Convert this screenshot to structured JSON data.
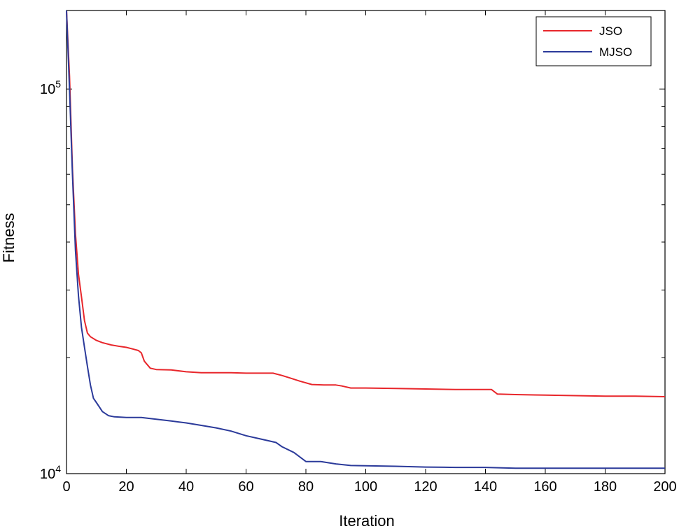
{
  "chart_data": {
    "type": "line",
    "xlabel": "Iteration",
    "ylabel": "Fitness",
    "xlim": [
      0,
      200
    ],
    "ylim": [
      10000,
      160000
    ],
    "yscale": "log",
    "grid": false,
    "legend": "top-right",
    "x_ticks": [
      0,
      20,
      40,
      60,
      80,
      100,
      120,
      140,
      160,
      180,
      200
    ],
    "y_major_ticks": [
      {
        "value": 10000,
        "base": "10",
        "exp": "4"
      },
      {
        "value": 100000,
        "base": "10",
        "exp": "5"
      }
    ],
    "y_minor_ticks": [
      20000,
      30000,
      40000,
      50000,
      60000,
      70000,
      80000,
      90000
    ],
    "colors": {
      "JSO": "#e8262b",
      "MJSO": "#2b3a9a"
    },
    "series": [
      {
        "name": "JSO",
        "color": "#e8262b",
        "points": [
          [
            0,
            160000
          ],
          [
            1,
            108000
          ],
          [
            2,
            62000
          ],
          [
            3,
            42000
          ],
          [
            4,
            33000
          ],
          [
            5,
            28800
          ],
          [
            6,
            25000
          ],
          [
            7,
            23200
          ],
          [
            8,
            22700
          ],
          [
            10,
            22200
          ],
          [
            12,
            21900
          ],
          [
            15,
            21600
          ],
          [
            18,
            21400
          ],
          [
            20,
            21300
          ],
          [
            22,
            21100
          ],
          [
            24,
            20900
          ],
          [
            25,
            20600
          ],
          [
            26,
            19600
          ],
          [
            28,
            18800
          ],
          [
            30,
            18650
          ],
          [
            35,
            18600
          ],
          [
            40,
            18400
          ],
          [
            45,
            18300
          ],
          [
            50,
            18300
          ],
          [
            55,
            18300
          ],
          [
            60,
            18250
          ],
          [
            65,
            18250
          ],
          [
            69,
            18250
          ],
          [
            72,
            18000
          ],
          [
            75,
            17700
          ],
          [
            78,
            17400
          ],
          [
            82,
            17050
          ],
          [
            86,
            17000
          ],
          [
            90,
            17000
          ],
          [
            92,
            16900
          ],
          [
            95,
            16700
          ],
          [
            100,
            16700
          ],
          [
            110,
            16650
          ],
          [
            120,
            16600
          ],
          [
            130,
            16550
          ],
          [
            140,
            16550
          ],
          [
            142,
            16550
          ],
          [
            144,
            16100
          ],
          [
            150,
            16050
          ],
          [
            160,
            16000
          ],
          [
            180,
            15900
          ],
          [
            190,
            15900
          ],
          [
            200,
            15850
          ]
        ]
      },
      {
        "name": "MJSO",
        "color": "#2b3a9a",
        "points": [
          [
            0,
            160000
          ],
          [
            1,
            100000
          ],
          [
            2,
            60000
          ],
          [
            3,
            38000
          ],
          [
            4,
            29000
          ],
          [
            5,
            24000
          ],
          [
            6,
            21300
          ],
          [
            7,
            19000
          ],
          [
            8,
            17000
          ],
          [
            9,
            15700
          ],
          [
            10,
            15300
          ],
          [
            12,
            14500
          ],
          [
            14,
            14150
          ],
          [
            16,
            14050
          ],
          [
            20,
            14000
          ],
          [
            25,
            14000
          ],
          [
            30,
            13850
          ],
          [
            35,
            13700
          ],
          [
            40,
            13550
          ],
          [
            45,
            13350
          ],
          [
            50,
            13150
          ],
          [
            55,
            12900
          ],
          [
            60,
            12550
          ],
          [
            65,
            12300
          ],
          [
            70,
            12050
          ],
          [
            72,
            11750
          ],
          [
            76,
            11350
          ],
          [
            78,
            11050
          ],
          [
            80,
            10750
          ],
          [
            85,
            10750
          ],
          [
            90,
            10600
          ],
          [
            95,
            10500
          ],
          [
            110,
            10450
          ],
          [
            120,
            10400
          ],
          [
            130,
            10380
          ],
          [
            140,
            10380
          ],
          [
            150,
            10330
          ],
          [
            160,
            10330
          ],
          [
            180,
            10330
          ],
          [
            200,
            10330
          ]
        ]
      }
    ]
  }
}
